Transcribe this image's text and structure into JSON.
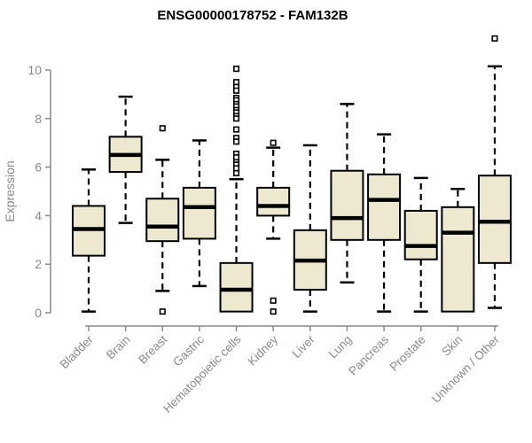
{
  "colors": {
    "box_fill": "#EDE8D0",
    "box_stroke": "#000000",
    "median": "#000000",
    "whisker": "#000000",
    "outlier_stroke": "#000000",
    "outlier_fill": "#ffffff",
    "axis": "#8a8a8a",
    "title": "#000000",
    "background": "#ffffff"
  },
  "chart_data": {
    "type": "boxplot",
    "title": "ENSG00000178752 - FAM132B",
    "ylabel": "Expression",
    "xlabel": "",
    "ylim": [
      0,
      10
    ],
    "yticks": [
      "0",
      "2",
      "4",
      "6",
      "8",
      "10"
    ],
    "ytick_values": [
      0,
      2,
      4,
      6,
      8,
      10
    ],
    "grid": false,
    "legend": "none",
    "categories": [
      "Bladder",
      "Brain",
      "Breast",
      "Gastric",
      "Hematopoietic cells",
      "Kidney",
      "Liver",
      "Lung",
      "Pancreas",
      "Prostate",
      "Skin",
      "Unknown / Other"
    ],
    "series": [
      {
        "name": "Bladder",
        "whisker_low": 0.05,
        "q1": 2.35,
        "median": 3.45,
        "q3": 4.4,
        "whisker_high": 5.9,
        "outliers": []
      },
      {
        "name": "Brain",
        "whisker_low": 3.7,
        "q1": 5.8,
        "median": 6.5,
        "q3": 7.25,
        "whisker_high": 8.9,
        "outliers": []
      },
      {
        "name": "Breast",
        "whisker_low": 0.9,
        "q1": 2.95,
        "median": 3.55,
        "q3": 4.7,
        "whisker_high": 6.3,
        "outliers": [
          7.6,
          0.05
        ]
      },
      {
        "name": "Gastric",
        "whisker_low": 1.1,
        "q1": 3.05,
        "median": 4.35,
        "q3": 5.15,
        "whisker_high": 7.1,
        "outliers": []
      },
      {
        "name": "Hematopoietic cells",
        "whisker_low": 0.05,
        "q1": 0.05,
        "median": 0.95,
        "q3": 2.05,
        "whisker_high": 5.5,
        "outliers": [
          10.05,
          9.5,
          9.3,
          9.15,
          8.85,
          8.75,
          8.6,
          8.5,
          8.35,
          8.25,
          8.1,
          8.0,
          7.55,
          7.2,
          7.05,
          6.55,
          6.4,
          6.2,
          6.1,
          5.95,
          5.75
        ]
      },
      {
        "name": "Kidney",
        "whisker_low": 3.05,
        "q1": 4.0,
        "median": 4.4,
        "q3": 5.15,
        "whisker_high": 6.8,
        "outliers": [
          7.0,
          0.5,
          0.05
        ]
      },
      {
        "name": "Liver",
        "whisker_low": 0.05,
        "q1": 0.95,
        "median": 2.15,
        "q3": 3.4,
        "whisker_high": 6.9,
        "outliers": []
      },
      {
        "name": "Lung",
        "whisker_low": 1.25,
        "q1": 3.0,
        "median": 3.9,
        "q3": 5.85,
        "whisker_high": 8.6,
        "outliers": []
      },
      {
        "name": "Pancreas",
        "whisker_low": 0.05,
        "q1": 3.0,
        "median": 4.65,
        "q3": 5.7,
        "whisker_high": 7.35,
        "outliers": []
      },
      {
        "name": "Prostate",
        "whisker_low": 0.05,
        "q1": 2.2,
        "median": 2.75,
        "q3": 4.2,
        "whisker_high": 5.55,
        "outliers": []
      },
      {
        "name": "Skin",
        "whisker_low": 0.05,
        "q1": 0.05,
        "median": 3.3,
        "q3": 4.35,
        "whisker_high": 5.1,
        "outliers": []
      },
      {
        "name": "Unknown / Other",
        "whisker_low": 0.2,
        "q1": 2.05,
        "median": 3.75,
        "q3": 5.65,
        "whisker_high": 10.15,
        "outliers": [
          11.3
        ]
      }
    ]
  }
}
